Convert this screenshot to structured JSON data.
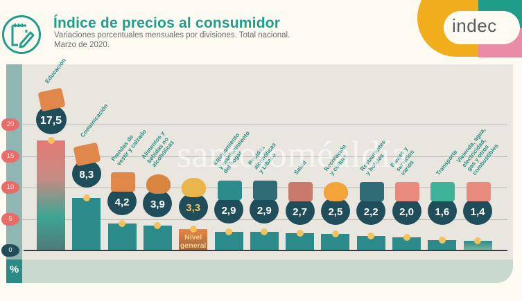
{
  "header": {
    "title": "Índice de precios al consumidor",
    "subtitle_line1": "Variaciones porcentuales mensuales por divisiones. Total nacional.",
    "subtitle_line2": "Marzo de 2020.",
    "icon": "notepad-pencil-icon"
  },
  "logo": {
    "text": "indec"
  },
  "axis": {
    "unit_label": "%",
    "ticks": [
      "0",
      "5",
      "10",
      "15",
      "20"
    ]
  },
  "watermark": "santotoméaldía",
  "nivel_general_label": "Nivel\ngeneral",
  "colors": {
    "teal_brand": "#1f9d8a",
    "bar_teal": "#2b8a8a",
    "bubble_navy": "#1f4d5a",
    "tick_red": "#e86d6a",
    "dot_gold": "#f2c35c",
    "logo_yellow": "#f2ad1d",
    "logo_pink": "#e98aa7"
  },
  "bars": [
    {
      "label": "Educación",
      "value_text": "17,5",
      "icon": "book-icon"
    },
    {
      "label": "Comunicación",
      "value_text": "8,3",
      "icon": "phone-icon"
    },
    {
      "label": "Prendas de\nvestir y calzado",
      "value_text": "4,2",
      "icon": "tshirt-shoe-icon"
    },
    {
      "label": "Alimentos y\nbebidas no\nalcohólicas",
      "value_text": "3,9",
      "icon": "roast-chicken-icon"
    },
    {
      "label": "",
      "value_text": "3,3",
      "icon": "food-basket-icon"
    },
    {
      "label": "Equipamiento\ny mantenimiento\ndel hogar",
      "value_text": "2,9",
      "icon": "washing-machine-icon"
    },
    {
      "label": "Bebidas\nalcohólicas\ny tabaco",
      "value_text": "2,9",
      "icon": "bottle-pipe-icon"
    },
    {
      "label": "Salud",
      "value_text": "2,7",
      "icon": "first-aid-kit-icon"
    },
    {
      "label": "Recreación\ny cultura",
      "value_text": "2,5",
      "icon": "sun-glasses-icon"
    },
    {
      "label": "Restaurantes\ny hoteles",
      "value_text": "2,2",
      "icon": "globe-plane-icon"
    },
    {
      "label": "Bienes y\nservicios\nvarios",
      "value_text": "2,0",
      "icon": "comb-scissors-icon"
    },
    {
      "label": "Transporte",
      "value_text": "1,6",
      "icon": "bus-car-icon"
    },
    {
      "label": "Vivienda, agua,\nelectricidad,\ngas y otros\ncombustibles",
      "value_text": "1,4",
      "icon": "lightbulb-icon"
    }
  ],
  "chart_data": {
    "type": "bar",
    "title": "Índice de precios al consumidor",
    "subtitle": "Variaciones porcentuales mensuales por divisiones. Total nacional. Marzo de 2020.",
    "xlabel": "",
    "ylabel": "%",
    "ylim": [
      0,
      20
    ],
    "yticks": [
      0,
      5,
      10,
      15,
      20
    ],
    "grid": true,
    "legend": null,
    "categories": [
      "Educación",
      "Comunicación",
      "Prendas de vestir y calzado",
      "Alimentos y bebidas no alcohólicas",
      "Nivel general",
      "Equipamiento y mantenimiento del hogar",
      "Bebidas alcohólicas y tabaco",
      "Salud",
      "Recreación y cultura",
      "Restaurantes y hoteles",
      "Bienes y servicios varios",
      "Transporte",
      "Vivienda, agua, electricidad, gas y otros combustibles"
    ],
    "values": [
      17.5,
      8.3,
      4.2,
      3.9,
      3.3,
      2.9,
      2.9,
      2.7,
      2.5,
      2.2,
      2.0,
      1.6,
      1.4
    ],
    "highlight": {
      "category": "Nivel general",
      "value": 3.3
    }
  }
}
